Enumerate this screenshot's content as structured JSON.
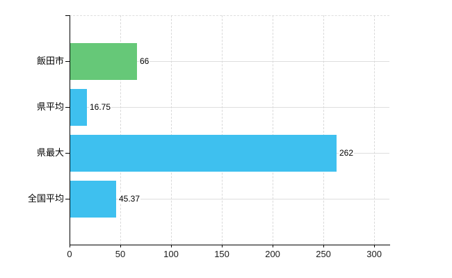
{
  "chart_data": {
    "type": "bar",
    "orientation": "horizontal",
    "title": "",
    "xlabel": "",
    "ylabel": "",
    "categories": [
      "飯田市",
      "県平均",
      "県最大",
      "全国平均"
    ],
    "values": [
      66,
      16.75,
      262,
      45.37
    ],
    "value_labels": [
      "66",
      "16.75",
      "262",
      "45.37"
    ],
    "series_colors": [
      "#66c878",
      "#3ec0ef",
      "#3ec0ef",
      "#3ec0ef"
    ],
    "x_ticks": [
      0,
      50,
      100,
      150,
      200,
      250,
      300
    ],
    "x_tick_labels": [
      "0",
      "50",
      "100",
      "150",
      "200",
      "250",
      "300"
    ],
    "xlim": [
      0,
      315
    ],
    "grid": "on",
    "legend": "none",
    "colors": {
      "axis": "#000000",
      "gridline": "#dedede",
      "background": "#ffffff",
      "green_bar": "#66c878",
      "blue_bar": "#3ec0ef"
    }
  }
}
